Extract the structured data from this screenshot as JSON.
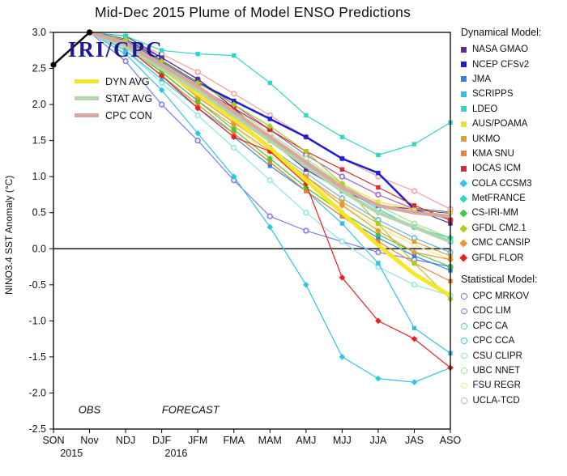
{
  "title": "Mid-Dec 2015 Plume of Model ENSO Predictions",
  "ylabel": "NINO3.4 SST Anomaly (°C)",
  "watermark": "IRI/CPC",
  "legend": {
    "dyn_heading": "Dynamical Model:",
    "stat_heading": "Statistical Model:"
  },
  "chart_data": {
    "type": "line",
    "title": "Mid-Dec 2015 Plume of Model ENSO Predictions",
    "xlabel": "",
    "ylabel": "NINO3.4 SST Anomaly (°C)",
    "ylim": [
      -2.5,
      3.0
    ],
    "yticks": [
      3.0,
      2.5,
      2.0,
      1.5,
      1.0,
      0.5,
      0.0,
      -0.5,
      -1.0,
      -1.5,
      -2.0,
      -2.5
    ],
    "categories": [
      "SON",
      "Nov",
      "NDJ",
      "DJF",
      "JFM",
      "FMA",
      "MAM",
      "AMJ",
      "MJJ",
      "JJA",
      "JAS",
      "ASO"
    ],
    "year_labels": [
      {
        "text": "2015",
        "at": 0.5
      },
      {
        "text": "2016",
        "at": 3.4
      }
    ],
    "annotations": [
      {
        "text": "OBS",
        "at": 1.0,
        "y": -2.28
      },
      {
        "text": "FORECAST",
        "at": 3.8,
        "y": -2.28
      }
    ],
    "observed": {
      "name": "OBS",
      "color": "#000000",
      "width": 2.5,
      "marker": "dot",
      "values": [
        2.55,
        3.0,
        null,
        null,
        null,
        null,
        null,
        null,
        null,
        null,
        null,
        null
      ]
    },
    "averages": [
      {
        "name": "DYN AVG",
        "color": "#f5e62a",
        "width": 5,
        "values": [
          null,
          3.0,
          2.85,
          2.5,
          2.15,
          1.8,
          1.4,
          0.95,
          0.5,
          0.05,
          -0.35,
          -0.65
        ]
      },
      {
        "name": "STAT AVG",
        "color": "#b5d4ad",
        "width": 4.5,
        "values": [
          null,
          3.0,
          2.8,
          2.5,
          2.2,
          1.85,
          1.5,
          1.15,
          0.8,
          0.5,
          0.3,
          0.1
        ]
      },
      {
        "name": "CPC CON",
        "color": "#d8a8a0",
        "width": 4.5,
        "values": [
          null,
          3.0,
          2.85,
          2.55,
          2.25,
          1.9,
          1.55,
          1.2,
          0.85,
          0.6,
          0.5,
          0.45
        ]
      }
    ],
    "dynamical": [
      {
        "name": "NASA GMAO",
        "color": "#5c2d91",
        "marker": "square",
        "values": [
          null,
          3.0,
          2.95,
          2.65,
          2.35,
          1.95,
          1.5,
          1.1,
          0.8,
          0.6,
          0.55,
          0.35
        ]
      },
      {
        "name": "NCEP CFSv2",
        "color": "#1f1fd1",
        "marker": "square",
        "width": 2.5,
        "values": [
          null,
          3.0,
          2.9,
          2.6,
          2.3,
          2.05,
          1.8,
          1.55,
          1.25,
          1.05,
          0.55,
          0.5
        ]
      },
      {
        "name": "JMA",
        "color": "#2f86d8",
        "marker": "square",
        "values": [
          null,
          3.0,
          2.8,
          2.4,
          1.95,
          1.55,
          1.15,
          0.8,
          0.45,
          0.15,
          -0.1,
          -0.3
        ]
      },
      {
        "name": "SCRIPPS",
        "color": "#35c0e8",
        "marker": "square",
        "values": [
          null,
          3.0,
          2.75,
          2.35,
          1.95,
          1.6,
          1.2,
          0.8,
          0.35,
          -0.2,
          -1.1,
          -1.45
        ]
      },
      {
        "name": "LDEO",
        "color": "#2fd6c8",
        "marker": "square",
        "values": [
          null,
          3.0,
          2.95,
          2.75,
          2.7,
          2.68,
          2.3,
          1.85,
          1.55,
          1.3,
          1.45,
          1.75
        ]
      },
      {
        "name": "AUS/POAMA",
        "color": "#f0e030",
        "marker": "square",
        "values": [
          null,
          3.0,
          2.85,
          2.5,
          2.15,
          1.8,
          1.5,
          1.2,
          0.9,
          0.65,
          0.55,
          0.5
        ]
      },
      {
        "name": "UKMO",
        "color": "#e0a030",
        "marker": "square",
        "values": [
          null,
          3.0,
          2.8,
          2.45,
          2.05,
          1.7,
          1.35,
          1.0,
          0.65,
          0.35,
          0.1,
          -0.1
        ]
      },
      {
        "name": "KMA SNU",
        "color": "#f08030",
        "marker": "square",
        "values": [
          null,
          3.0,
          2.8,
          2.4,
          2.0,
          1.6,
          1.2,
          0.8,
          0.45,
          0.1,
          -0.2,
          -0.45
        ]
      },
      {
        "name": "IOCAS ICM",
        "color": "#d92b2b",
        "marker": "square",
        "values": [
          null,
          3.0,
          2.85,
          2.55,
          2.25,
          1.95,
          1.65,
          1.35,
          1.1,
          0.85,
          0.6,
          0.4
        ]
      },
      {
        "name": "COLA CCSM3",
        "color": "#2fc4e8",
        "marker": "diamond",
        "values": [
          null,
          3.0,
          2.7,
          2.2,
          1.6,
          1.0,
          0.3,
          -0.5,
          -1.5,
          -1.8,
          -1.85,
          -1.65
        ]
      },
      {
        "name": "MetFRANCE",
        "color": "#2fd8c0",
        "marker": "diamond",
        "values": [
          null,
          3.0,
          2.85,
          2.55,
          2.2,
          1.85,
          1.5,
          1.15,
          0.8,
          0.5,
          0.3,
          0.15
        ]
      },
      {
        "name": "CS-IRI-MM",
        "color": "#3fca3f",
        "marker": "diamond",
        "values": [
          null,
          3.0,
          2.8,
          2.45,
          2.05,
          1.65,
          1.25,
          0.85,
          0.5,
          0.2,
          -0.05,
          -0.25
        ]
      },
      {
        "name": "GFDL CM2.1",
        "color": "#a8d020",
        "marker": "diamond",
        "values": [
          null,
          3.0,
          2.9,
          2.6,
          2.3,
          2.0,
          1.7,
          1.35,
          0.9,
          0.35,
          -0.2,
          -0.7
        ]
      },
      {
        "name": "CMC CANSIP",
        "color": "#f09530",
        "marker": "diamond",
        "values": [
          null,
          3.0,
          2.85,
          2.5,
          2.1,
          1.75,
          1.4,
          1.0,
          0.6,
          0.25,
          -0.05,
          -0.15
        ]
      },
      {
        "name": "GFDL FLOR",
        "color": "#e82020",
        "marker": "diamond",
        "values": [
          null,
          3.0,
          2.8,
          2.4,
          1.95,
          1.55,
          1.35,
          0.9,
          -0.4,
          -1.0,
          -1.25,
          -1.65
        ]
      }
    ],
    "statistical": [
      {
        "name": "CPC MRKOV",
        "color": "#9a5fd0",
        "marker": "circle-open",
        "values": [
          null,
          3.0,
          2.9,
          2.65,
          2.35,
          2.0,
          1.65,
          1.3,
          1.0,
          0.75,
          0.55,
          0.4
        ]
      },
      {
        "name": "CDC LIM",
        "color": "#7a7ae8",
        "marker": "circle-open",
        "values": [
          null,
          3.0,
          2.6,
          2.0,
          1.5,
          0.95,
          0.45,
          0.25,
          0.1,
          -0.05,
          -0.15,
          -0.25
        ]
      },
      {
        "name": "CPC CA",
        "color": "#5fb8e8",
        "marker": "circle-open",
        "values": [
          null,
          3.0,
          2.8,
          2.5,
          2.1,
          1.75,
          1.4,
          1.05,
          0.7,
          0.4,
          0.15,
          -0.05
        ]
      },
      {
        "name": "CPC CCA",
        "color": "#35cde0",
        "marker": "circle-open",
        "values": [
          null,
          3.0,
          2.85,
          2.55,
          2.2,
          1.9,
          1.55,
          1.2,
          0.85,
          0.55,
          0.3,
          0.1
        ]
      },
      {
        "name": "CSU CLIPR",
        "color": "#8ae8dc",
        "marker": "circle-open",
        "values": [
          null,
          3.0,
          2.75,
          2.3,
          1.85,
          1.4,
          0.95,
          0.5,
          0.1,
          -0.25,
          -0.5,
          -0.65
        ]
      },
      {
        "name": "UBC NNET",
        "color": "#9fe88a",
        "marker": "circle-open",
        "values": [
          null,
          3.0,
          2.85,
          2.55,
          2.25,
          1.95,
          1.6,
          1.25,
          0.9,
          0.6,
          0.35,
          0.15
        ]
      },
      {
        "name": "FSU REGR",
        "color": "#ede98e",
        "marker": "circle-open",
        "values": [
          null,
          3.0,
          2.8,
          2.45,
          2.05,
          1.7,
          1.3,
          0.95,
          0.6,
          0.3,
          0.05,
          -0.15
        ]
      },
      {
        "name": "UCLA-TCD",
        "color": "#f59f9f",
        "marker": "circle-open",
        "values": [
          null,
          3.0,
          2.9,
          2.7,
          2.45,
          2.15,
          1.85,
          1.55,
          1.25,
          1.0,
          0.8,
          0.55
        ]
      }
    ]
  }
}
